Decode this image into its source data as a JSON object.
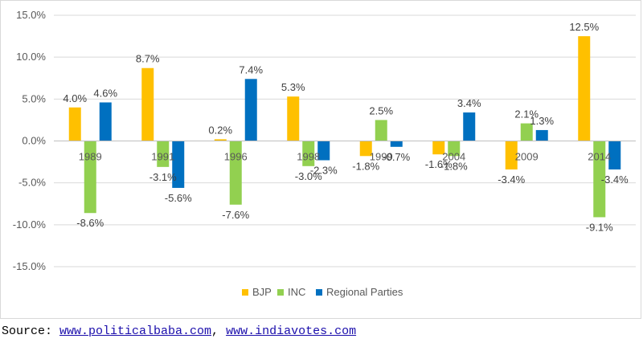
{
  "chart_data": {
    "type": "bar",
    "categories": [
      "1989",
      "1991",
      "1996",
      "1998",
      "1999",
      "2004",
      "2009",
      "2014"
    ],
    "series": [
      {
        "name": "BJP",
        "values": [
          4.0,
          8.7,
          0.2,
          5.3,
          -1.8,
          -1.6,
          -3.4,
          12.5
        ],
        "color": "#FFC000"
      },
      {
        "name": "INC",
        "values": [
          -8.6,
          -3.1,
          -7.6,
          -3.0,
          2.5,
          -1.8,
          2.1,
          -9.1
        ],
        "color": "#92D050"
      },
      {
        "name": "Regional Parties",
        "values": [
          4.6,
          -5.6,
          7.4,
          -2.3,
          -0.7,
          3.4,
          1.3,
          -3.4
        ],
        "color": "#0070C0"
      }
    ],
    "ylim": [
      -15,
      15
    ],
    "yticks": [
      15,
      10,
      5,
      0,
      -5,
      -10,
      -15
    ],
    "ytick_labels": [
      "15.0%",
      "10.0%",
      "5.0%",
      "0.0%",
      "-5.0%",
      "-10.0%",
      "-15.0%"
    ],
    "data_labels": [
      [
        "4.0%",
        "8.7%",
        "0.2%",
        "5.3%",
        "-1.8%",
        "-1.6%",
        "-3.4%",
        "12.5%"
      ],
      [
        "-8.6%",
        "-3.1%",
        "-7.6%",
        "-3.0%",
        "2.5%",
        "-1.8%",
        "2.1%",
        "-9.1%"
      ],
      [
        "4.6%",
        "-5.6%",
        "7.4%",
        "-2.3%",
        "-0.7%",
        "3.4%",
        "1.3%",
        "-3.4%"
      ]
    ],
    "grid": true,
    "legend_position": "bottom",
    "title": "",
    "xlabel": "",
    "ylabel": ""
  },
  "source": {
    "prefix": "Source: ",
    "link1": "www.politicalbaba.com",
    "separator": ", ",
    "link2": "www.indiavotes.com"
  }
}
